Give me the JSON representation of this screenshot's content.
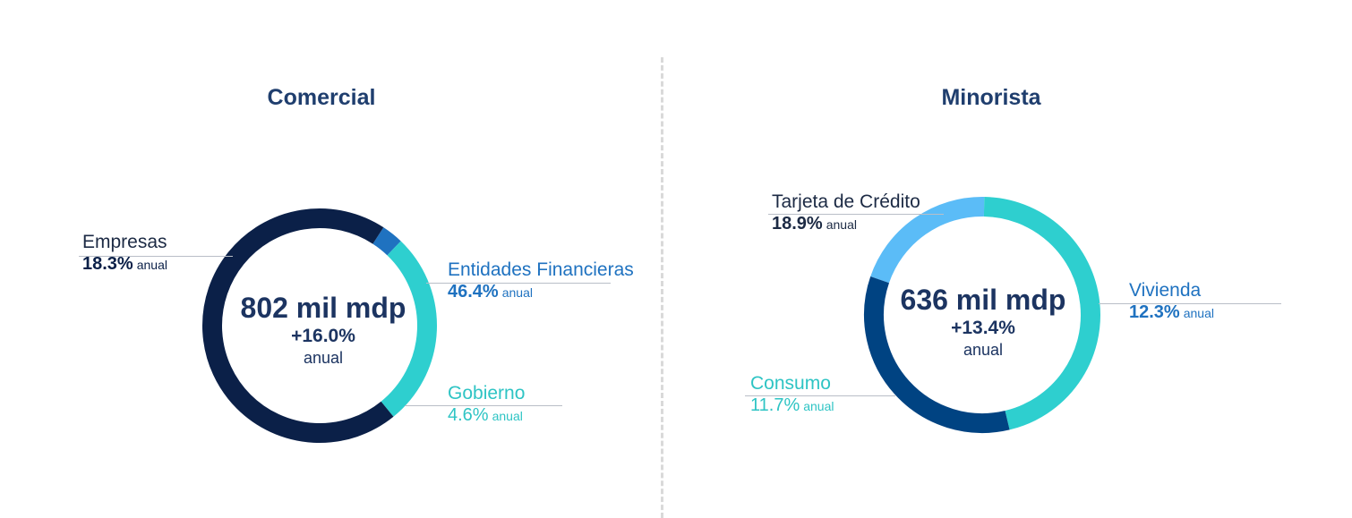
{
  "chart_data": [
    {
      "type": "pie",
      "title": "Comercial",
      "total_label": "802 mil mdp",
      "growth_label": "+16.0%",
      "growth_unit": "anual",
      "series": [
        {
          "name": "Empresas",
          "share": 0.7,
          "growth": "18.3%",
          "growth_unit": "anual",
          "color": "#0b2048"
        },
        {
          "name": "Entidades Financieras",
          "share": 0.03,
          "growth": "46.4%",
          "growth_unit": "anual",
          "color": "#1f72c0"
        },
        {
          "name": "Gobierno",
          "share": 0.27,
          "growth": "4.6%",
          "growth_unit": "anual",
          "color": "#2ecfcf"
        }
      ]
    },
    {
      "type": "pie",
      "title": "Minorista",
      "total_label": "636 mil mdp",
      "growth_label": "+13.4%",
      "growth_unit": "anual",
      "series": [
        {
          "name": "Tarjeta de Crédito",
          "share": 0.2,
          "growth": "18.9%",
          "growth_unit": "anual",
          "color": "#5bbcf7"
        },
        {
          "name": "Vivienda",
          "share": 0.46,
          "growth": "12.3%",
          "growth_unit": "anual",
          "color": "#2ecfcf"
        },
        {
          "name": "Consumo",
          "share": 0.34,
          "growth": "11.7%",
          "growth_unit": "anual",
          "color": "#004382"
        }
      ]
    }
  ]
}
